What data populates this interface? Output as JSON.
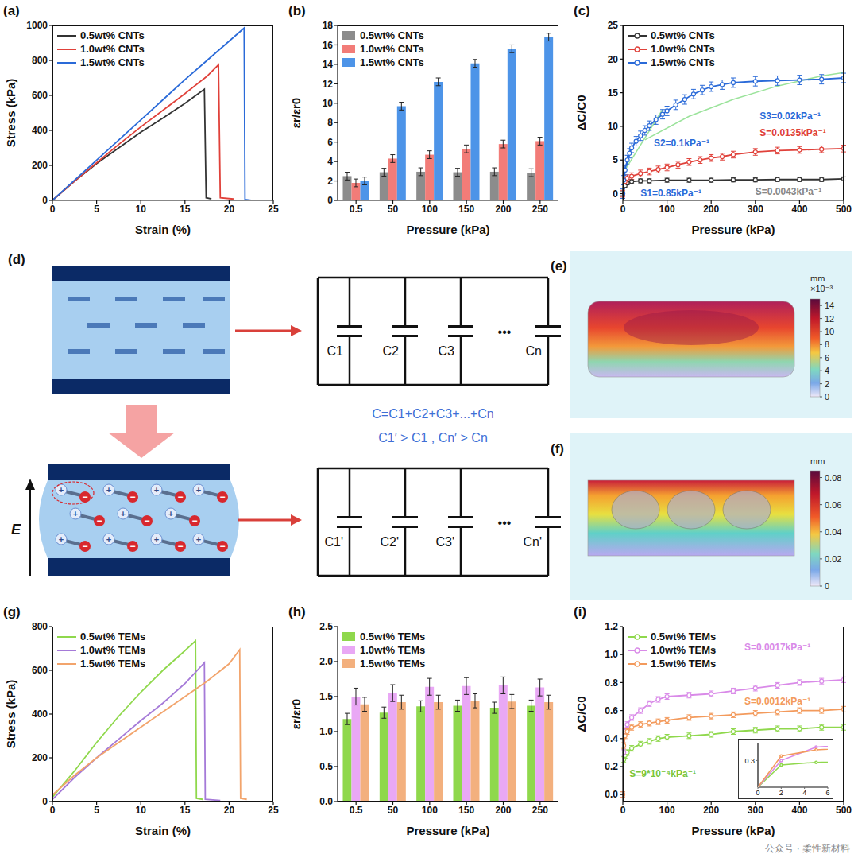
{
  "chart_data": [
    {
      "type": "line",
      "title": "(a)",
      "x_label": "Strain (%)",
      "y_label": "Stress (kPa)",
      "xlim": [
        0,
        25
      ],
      "xticks": [
        0,
        5,
        10,
        15,
        20,
        25
      ],
      "ylim": [
        0,
        1000
      ],
      "yticks": [
        0,
        200,
        400,
        600,
        800,
        1000
      ],
      "grid": false,
      "legend": "upper left",
      "series": [
        {
          "name": "0.5wt% CNTs",
          "color": "#333333",
          "x": [
            0,
            2.5,
            5,
            7.5,
            10,
            12.5,
            15,
            17.2,
            17.4,
            18
          ],
          "values": [
            0,
            110,
            210,
            300,
            390,
            470,
            555,
            635,
            15,
            8
          ]
        },
        {
          "name": "1.0wt% CNTs",
          "color": "#e0413a",
          "x": [
            0,
            2.5,
            5,
            7.5,
            10,
            12.5,
            15,
            17.5,
            18.8,
            19,
            20.5
          ],
          "values": [
            0,
            110,
            215,
            320,
            420,
            515,
            610,
            710,
            775,
            15,
            8
          ]
        },
        {
          "name": "1.5wt% CNTs",
          "color": "#2a6ad8",
          "x": [
            0,
            2.5,
            5,
            7.5,
            10,
            12.5,
            15,
            17.5,
            20,
            21.7,
            21.8,
            22.5
          ],
          "values": [
            0,
            115,
            230,
            345,
            460,
            575,
            690,
            800,
            910,
            985,
            5,
            0
          ]
        }
      ]
    },
    {
      "type": "bar",
      "title": "(b)",
      "x_label": "Pressure (kPa)",
      "y_label": "εr/εr0",
      "categories": [
        "0.5",
        "50",
        "100",
        "150",
        "200",
        "250"
      ],
      "ylim": [
        0,
        18
      ],
      "yticks": [
        0,
        2,
        4,
        6,
        8,
        10,
        12,
        14,
        16,
        18
      ],
      "grid": false,
      "legend": "upper left",
      "series": [
        {
          "name": "0.5wt% CNTs",
          "color": "#8c8c8c",
          "values": [
            2.5,
            2.9,
            2.95,
            2.9,
            2.95,
            2.85
          ],
          "errors": [
            0.4,
            0.4,
            0.4,
            0.4,
            0.4,
            0.4
          ]
        },
        {
          "name": "1.0wt% CNTs",
          "color": "#f27c78",
          "values": [
            1.8,
            4.3,
            4.7,
            5.3,
            5.8,
            6.1
          ],
          "errors": [
            0.4,
            0.4,
            0.4,
            0.4,
            0.4,
            0.4
          ]
        },
        {
          "name": "1.5wt% CNTs",
          "color": "#4d94e8",
          "values": [
            2.0,
            9.7,
            12.2,
            14.1,
            15.6,
            16.8
          ],
          "errors": [
            0.4,
            0.4,
            0.4,
            0.4,
            0.4,
            0.4
          ]
        }
      ]
    },
    {
      "type": "line",
      "title": "(c)",
      "x_label": "Pressure (kPa)",
      "y_label": "ΔC/C0",
      "xlim": [
        0,
        500
      ],
      "xticks": [
        0,
        100,
        200,
        300,
        400,
        500
      ],
      "ylim": [
        -1,
        25
      ],
      "yticks": [
        0,
        5,
        10,
        15,
        20,
        25
      ],
      "grid": false,
      "legend": "upper left",
      "series": [
        {
          "name": "0.5wt% CNTs",
          "color": "#333333",
          "marker": "circle",
          "x": [
            0,
            5,
            10,
            20,
            40,
            60,
            100,
            150,
            200,
            250,
            300,
            350,
            400,
            450,
            500
          ],
          "values": [
            0,
            1.2,
            1.6,
            1.8,
            1.9,
            1.9,
            2.0,
            2.0,
            2.0,
            2.05,
            2.05,
            2.1,
            2.1,
            2.1,
            2.2
          ],
          "errors": [
            0.3,
            0.3,
            0.3,
            0.3,
            0.3,
            0.3,
            0.3,
            0.3,
            0.3,
            0.3,
            0.3,
            0.3,
            0.3,
            0.3,
            0.3
          ]
        },
        {
          "name": "1.0wt% CNTs",
          "color": "#e0413a",
          "marker": "circle",
          "x": [
            0,
            5,
            10,
            20,
            40,
            60,
            80,
            100,
            125,
            150,
            175,
            200,
            225,
            250,
            300,
            350,
            400,
            450,
            500
          ],
          "values": [
            0,
            1.8,
            2.3,
            2.6,
            3.0,
            3.3,
            3.6,
            3.9,
            4.3,
            4.7,
            5.0,
            5.3,
            5.5,
            5.8,
            6.2,
            6.4,
            6.5,
            6.6,
            6.7
          ],
          "errors": [
            0.5,
            0.5,
            0.5,
            0.5,
            0.5,
            0.5,
            0.5,
            0.5,
            0.5,
            0.5,
            0.5,
            0.5,
            0.5,
            0.5,
            0.5,
            0.5,
            0.5,
            0.5,
            0.5
          ]
        },
        {
          "name": "1.5wt% CNTs",
          "color": "#2a6ad8",
          "marker": "circle",
          "x": [
            0,
            2,
            5,
            10,
            15,
            20,
            30,
            40,
            50,
            60,
            75,
            90,
            100,
            120,
            140,
            160,
            180,
            200,
            225,
            250,
            300,
            350,
            400,
            450,
            500
          ],
          "values": [
            0,
            2,
            3.5,
            5,
            6,
            6.8,
            7.8,
            8.6,
            9.4,
            10.1,
            11,
            11.8,
            12.3,
            13.2,
            14,
            14.8,
            15.4,
            15.9,
            16.2,
            16.5,
            16.7,
            16.8,
            16.9,
            17.0,
            17.2
          ],
          "errors": [
            0.7,
            0.7,
            0.7,
            0.7,
            0.7,
            0.7,
            0.7,
            0.7,
            0.7,
            0.7,
            0.7,
            0.7,
            0.7,
            0.7,
            0.7,
            0.7,
            0.7,
            0.7,
            0.7,
            0.7,
            0.7,
            0.7,
            0.7,
            0.7,
            0.7
          ]
        }
      ],
      "fit_lines": [
        {
          "color": "#9be39b",
          "x": [
            0,
            90
          ],
          "values": [
            3,
            12.5
          ]
        },
        {
          "color": "#9be39b",
          "x": [
            50,
            150,
            250,
            350,
            450,
            500
          ],
          "values": [
            8,
            11.5,
            14,
            16,
            17.5,
            18
          ]
        }
      ],
      "annotations": [
        {
          "text": "S1=0.85kPa⁻¹",
          "color": "#2a6ad8"
        },
        {
          "text": "S2=0.1kPa⁻¹",
          "color": "#2a6ad8"
        },
        {
          "text": "S3=0.02kPa⁻¹",
          "color": "#2a6ad8"
        },
        {
          "text": "S=0.0135kPa⁻¹",
          "color": "#e0413a"
        },
        {
          "text": "S=0.0043kPa⁻¹",
          "color": "#888888"
        }
      ]
    },
    {
      "type": "line",
      "title": "(g)",
      "x_label": "Strain (%)",
      "y_label": "Stress (kPa)",
      "xlim": [
        0,
        25
      ],
      "xticks": [
        0,
        5,
        10,
        15,
        20,
        25
      ],
      "ylim": [
        0,
        800
      ],
      "yticks": [
        0,
        200,
        400,
        600,
        800
      ],
      "grid": false,
      "legend": "upper left",
      "series": [
        {
          "name": "0.5wt% TEMs",
          "color": "#8fd84c",
          "x": [
            0,
            2.5,
            5,
            7.5,
            10,
            12.5,
            15,
            16.2,
            16.3,
            17
          ],
          "values": [
            20,
            140,
            270,
            390,
            500,
            600,
            690,
            735,
            15,
            10
          ]
        },
        {
          "name": "1.0wt% TEMs",
          "color": "#a57ad8",
          "x": [
            0,
            2.5,
            5,
            7.5,
            10,
            12.5,
            15,
            17.2,
            17.3,
            19
          ],
          "values": [
            10,
            110,
            200,
            285,
            370,
            450,
            540,
            635,
            10,
            5
          ]
        },
        {
          "name": "1.5wt% TEMs",
          "color": "#f2a46c",
          "x": [
            0,
            2.5,
            5,
            7.5,
            10,
            12.5,
            15,
            17.5,
            20,
            21.2,
            21.3,
            22
          ],
          "values": [
            30,
            120,
            200,
            270,
            340,
            410,
            480,
            550,
            630,
            695,
            15,
            10
          ]
        }
      ]
    },
    {
      "type": "bar",
      "title": "(h)",
      "x_label": "Pressure (kPa)",
      "y_label": "εr/εr0",
      "categories": [
        "0.5",
        "50",
        "100",
        "150",
        "200",
        "250"
      ],
      "ylim": [
        0,
        2.5
      ],
      "yticks": [
        {
          "value": 0,
          "label": "0.0"
        },
        0.5,
        {
          "value": 1,
          "label": "1.0"
        },
        1.5,
        {
          "value": 2,
          "label": "2.0"
        },
        2.5
      ],
      "grid": false,
      "legend": "upper left",
      "series": [
        {
          "name": "0.5wt% TEMs",
          "color": "#8fd84c",
          "values": [
            1.18,
            1.27,
            1.36,
            1.37,
            1.34,
            1.37
          ],
          "errors": [
            0.08,
            0.08,
            0.08,
            0.08,
            0.08,
            0.08
          ]
        },
        {
          "name": "1.0wt% TEMs",
          "color": "#e9a8f5",
          "values": [
            1.5,
            1.55,
            1.64,
            1.65,
            1.66,
            1.63
          ],
          "errors": [
            0.12,
            0.12,
            0.12,
            0.12,
            0.12,
            0.12
          ]
        },
        {
          "name": "1.5wt% TEMs",
          "color": "#f3b07e",
          "values": [
            1.39,
            1.42,
            1.42,
            1.44,
            1.43,
            1.42
          ],
          "errors": [
            0.1,
            0.1,
            0.1,
            0.1,
            0.1,
            0.1
          ]
        }
      ]
    },
    {
      "type": "line",
      "title": "(i)",
      "x_label": "Pressure (kPa)",
      "y_label": "ΔC/C0",
      "xlim": [
        0,
        500
      ],
      "xticks": [
        0,
        100,
        200,
        300,
        400,
        500
      ],
      "ylim": [
        -0.05,
        1.2
      ],
      "yticks": [
        {
          "value": 0,
          "label": "0.0"
        },
        0.2,
        0.4,
        0.6,
        0.8,
        {
          "value": 1,
          "label": "1.0"
        },
        1.2
      ],
      "grid": false,
      "legend": "upper left",
      "series": [
        {
          "name": "0.5wt% TEMs",
          "color": "#8fd84c",
          "marker": "circle",
          "x": [
            0,
            2,
            5,
            10,
            20,
            40,
            60,
            80,
            100,
            150,
            200,
            250,
            300,
            350,
            400,
            450,
            500
          ],
          "values": [
            0,
            0.25,
            0.28,
            0.3,
            0.33,
            0.36,
            0.38,
            0.4,
            0.41,
            0.42,
            0.43,
            0.45,
            0.46,
            0.47,
            0.47,
            0.48,
            0.48
          ],
          "errors": [
            0.02,
            0.02,
            0.02,
            0.02,
            0.02,
            0.02,
            0.02,
            0.02,
            0.02,
            0.02,
            0.02,
            0.02,
            0.02,
            0.02,
            0.02,
            0.02,
            0.02
          ]
        },
        {
          "name": "1.0wt% TEMs",
          "color": "#d98ae8",
          "marker": "circle",
          "x": [
            0,
            2,
            5,
            10,
            20,
            40,
            60,
            80,
            100,
            150,
            200,
            250,
            300,
            350,
            400,
            450,
            500
          ],
          "values": [
            0,
            0.3,
            0.45,
            0.5,
            0.55,
            0.6,
            0.65,
            0.68,
            0.7,
            0.71,
            0.72,
            0.74,
            0.76,
            0.78,
            0.8,
            0.81,
            0.82
          ],
          "errors": [
            0.02,
            0.02,
            0.02,
            0.02,
            0.02,
            0.02,
            0.02,
            0.02,
            0.02,
            0.02,
            0.02,
            0.02,
            0.02,
            0.02,
            0.02,
            0.02,
            0.02
          ]
        },
        {
          "name": "1.5wt% TEMs",
          "color": "#f39a5c",
          "marker": "circle",
          "x": [
            0,
            2,
            5,
            10,
            20,
            40,
            60,
            80,
            100,
            150,
            200,
            250,
            300,
            350,
            400,
            450,
            500
          ],
          "values": [
            0,
            0.35,
            0.42,
            0.45,
            0.48,
            0.5,
            0.51,
            0.52,
            0.53,
            0.55,
            0.56,
            0.57,
            0.58,
            0.59,
            0.6,
            0.6,
            0.61
          ],
          "errors": [
            0.02,
            0.02,
            0.02,
            0.02,
            0.02,
            0.02,
            0.02,
            0.02,
            0.02,
            0.02,
            0.02,
            0.02,
            0.02,
            0.02,
            0.02,
            0.02,
            0.02
          ]
        }
      ],
      "annotations": [
        {
          "text": "S=0.0017kPa⁻¹",
          "color": "#d98ae8"
        },
        {
          "text": "S=0.0012kPa⁻¹",
          "color": "#f39a5c"
        },
        {
          "text": "S=9*10⁻⁴kPa⁻¹",
          "color": "#7cc63a"
        }
      ],
      "inset": {
        "xlim": [
          0,
          6
        ],
        "xticks": [
          0,
          2,
          4,
          6
        ],
        "ylim": [
          0,
          0.5
        ],
        "yticks": [
          0.3
        ]
      }
    }
  ],
  "diagram": {
    "panel_d": {
      "title": "(d)",
      "field_label": "E",
      "charges": [
        "+",
        "−"
      ],
      "circuit_before": {
        "labels": [
          "C1",
          "C2",
          "C3",
          "Cn"
        ],
        "ellipsis": "•••"
      },
      "circuit_after": {
        "labels": [
          "C1'",
          "C2'",
          "C3'",
          "Cn'"
        ],
        "ellipsis": "•••"
      },
      "equations": [
        "C=C1+C2+C3+...+Cn",
        "C1′ > C1 , Cn′ > Cn"
      ]
    },
    "panel_e": {
      "title": "(e)",
      "colorbar": {
        "unit": "mm",
        "multiplier": "×10⁻³",
        "range": [
          0,
          15
        ],
        "ticks": [
          0,
          2,
          4,
          6,
          8,
          10,
          12,
          14
        ]
      }
    },
    "panel_f": {
      "title": "(f)",
      "colorbar": {
        "unit": "mm",
        "range": [
          0,
          0.085
        ],
        "ticks": [
          0,
          0.02,
          0.04,
          0.06,
          0.08
        ]
      }
    }
  },
  "watermark": "公众号 · 柔性新材料"
}
